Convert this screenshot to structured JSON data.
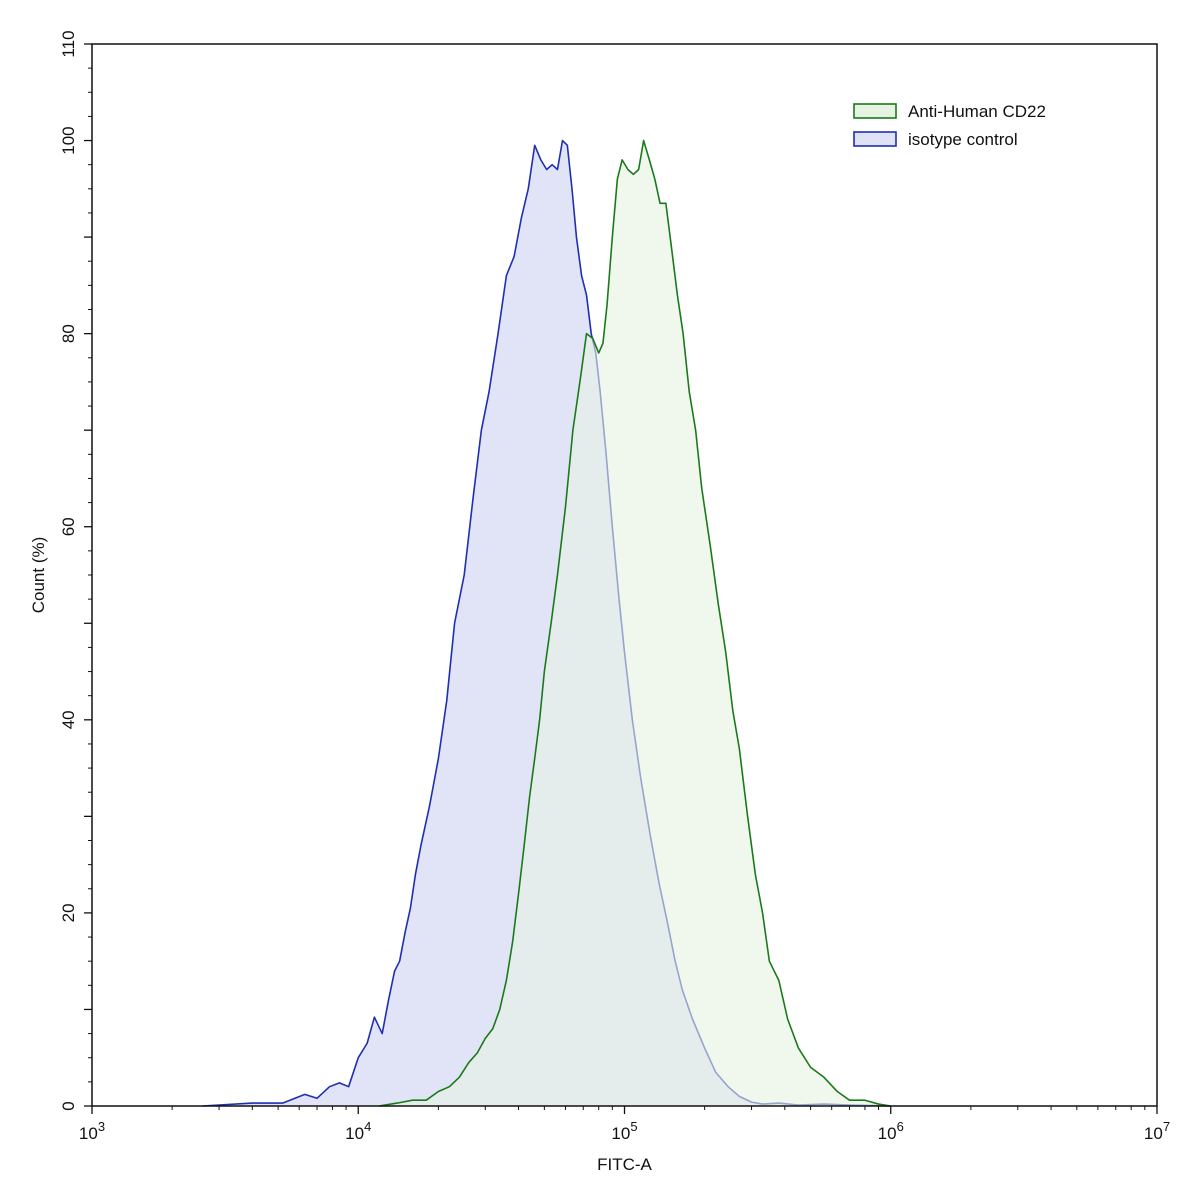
{
  "chart_data": {
    "type": "area",
    "xlabel": "FITC-A",
    "ylabel": "Count  (%)",
    "xscale": "log",
    "xlim": [
      1000,
      10000000
    ],
    "ylim": [
      0,
      110
    ],
    "x_ticks": [
      {
        "value": 1000,
        "base": "10",
        "exp": "3"
      },
      {
        "value": 10000,
        "base": "10",
        "exp": "4"
      },
      {
        "value": 100000,
        "base": "10",
        "exp": "5"
      },
      {
        "value": 1000000,
        "base": "10",
        "exp": "6"
      },
      {
        "value": 10000000,
        "base": "10",
        "exp": "7"
      }
    ],
    "y_ticks": [
      0,
      20,
      40,
      60,
      80,
      100,
      110
    ],
    "grid": false,
    "legend_position": "top-right",
    "series": [
      {
        "name": "isotype control",
        "color": "#1f2fb0",
        "fill": "#dfe2f7",
        "x": [
          2600,
          4000,
          5200,
          6300,
          7000,
          7800,
          8500,
          9200,
          10000,
          10800,
          11500,
          12300,
          13000,
          13700,
          14300,
          15000,
          15700,
          16400,
          17200,
          18500,
          20000,
          21500,
          23000,
          25000,
          27000,
          29000,
          31000,
          33500,
          36000,
          38500,
          41000,
          43500,
          46000,
          48500,
          51000,
          53500,
          56000,
          58500,
          61000,
          63500,
          66000,
          69000,
          72000,
          75000,
          78000,
          81000,
          85000,
          90000,
          95000,
          100000,
          107000,
          115000,
          125000,
          135000,
          145000,
          155000,
          165000,
          180000,
          200000,
          220000,
          245000,
          270000,
          300000,
          330000,
          380000,
          450000,
          560000,
          700000,
          1000000
        ],
        "y": [
          0,
          0.3,
          0.3,
          1.2,
          0.8,
          2.0,
          2.4,
          2.0,
          5.0,
          6.5,
          9.2,
          7.5,
          11.0,
          14.0,
          15.0,
          18.0,
          20.5,
          24.0,
          27.0,
          31.0,
          36.0,
          42.0,
          50.0,
          55.0,
          63.0,
          70.0,
          74.0,
          80.0,
          86.0,
          88.0,
          92.0,
          95.0,
          99.5,
          98.0,
          97.0,
          97.5,
          97.0,
          100.0,
          99.5,
          95.0,
          90.0,
          86.0,
          84.0,
          80.0,
          78.0,
          74.0,
          68.0,
          60.0,
          53.0,
          47.0,
          40.0,
          34.0,
          28.0,
          23.0,
          19.0,
          15.0,
          12.0,
          9.0,
          6.0,
          3.5,
          2.0,
          1.0,
          0.4,
          0.2,
          0.3,
          0.1,
          0.2,
          0.1,
          0
        ]
      },
      {
        "name": "Anti-Human CD22",
        "color": "#1a7a1a",
        "fill": "#e6f3e3",
        "x": [
          12000,
          14000,
          16000,
          18000,
          20000,
          22000,
          24000,
          26000,
          28000,
          30000,
          32000,
          34000,
          36000,
          38000,
          40000,
          42000,
          44000,
          46000,
          48000,
          50000,
          53000,
          56000,
          60000,
          64000,
          68000,
          72000,
          76000,
          80000,
          83000,
          86000,
          90000,
          94000,
          98000,
          103000,
          108000,
          113000,
          118000,
          124000,
          130000,
          136000,
          143000,
          150000,
          158000,
          166000,
          175000,
          185000,
          195000,
          210000,
          225000,
          240000,
          255000,
          270000,
          290000,
          310000,
          330000,
          350000,
          380000,
          410000,
          450000,
          500000,
          560000,
          630000,
          700000,
          800000,
          900000,
          1000000
        ],
        "y": [
          0,
          0.3,
          0.6,
          0.6,
          1.5,
          2.0,
          3.0,
          4.5,
          5.5,
          7.0,
          8.0,
          10.0,
          13.0,
          17.0,
          22.0,
          27.0,
          32.0,
          36.0,
          40.0,
          45.0,
          50.0,
          55.0,
          62.0,
          70.0,
          75.0,
          80.0,
          79.5,
          78.0,
          79.0,
          83.0,
          90.0,
          96.0,
          98.0,
          97.0,
          96.5,
          97.0,
          100.0,
          98.0,
          96.0,
          93.5,
          93.5,
          89.0,
          84.0,
          80.0,
          74.0,
          70.0,
          64.0,
          58.0,
          52.0,
          47.0,
          41.0,
          37.0,
          30.0,
          24.0,
          20.0,
          15.0,
          13.0,
          9.0,
          6.0,
          4.0,
          3.0,
          1.5,
          0.6,
          0.6,
          0.2,
          0
        ]
      }
    ]
  }
}
